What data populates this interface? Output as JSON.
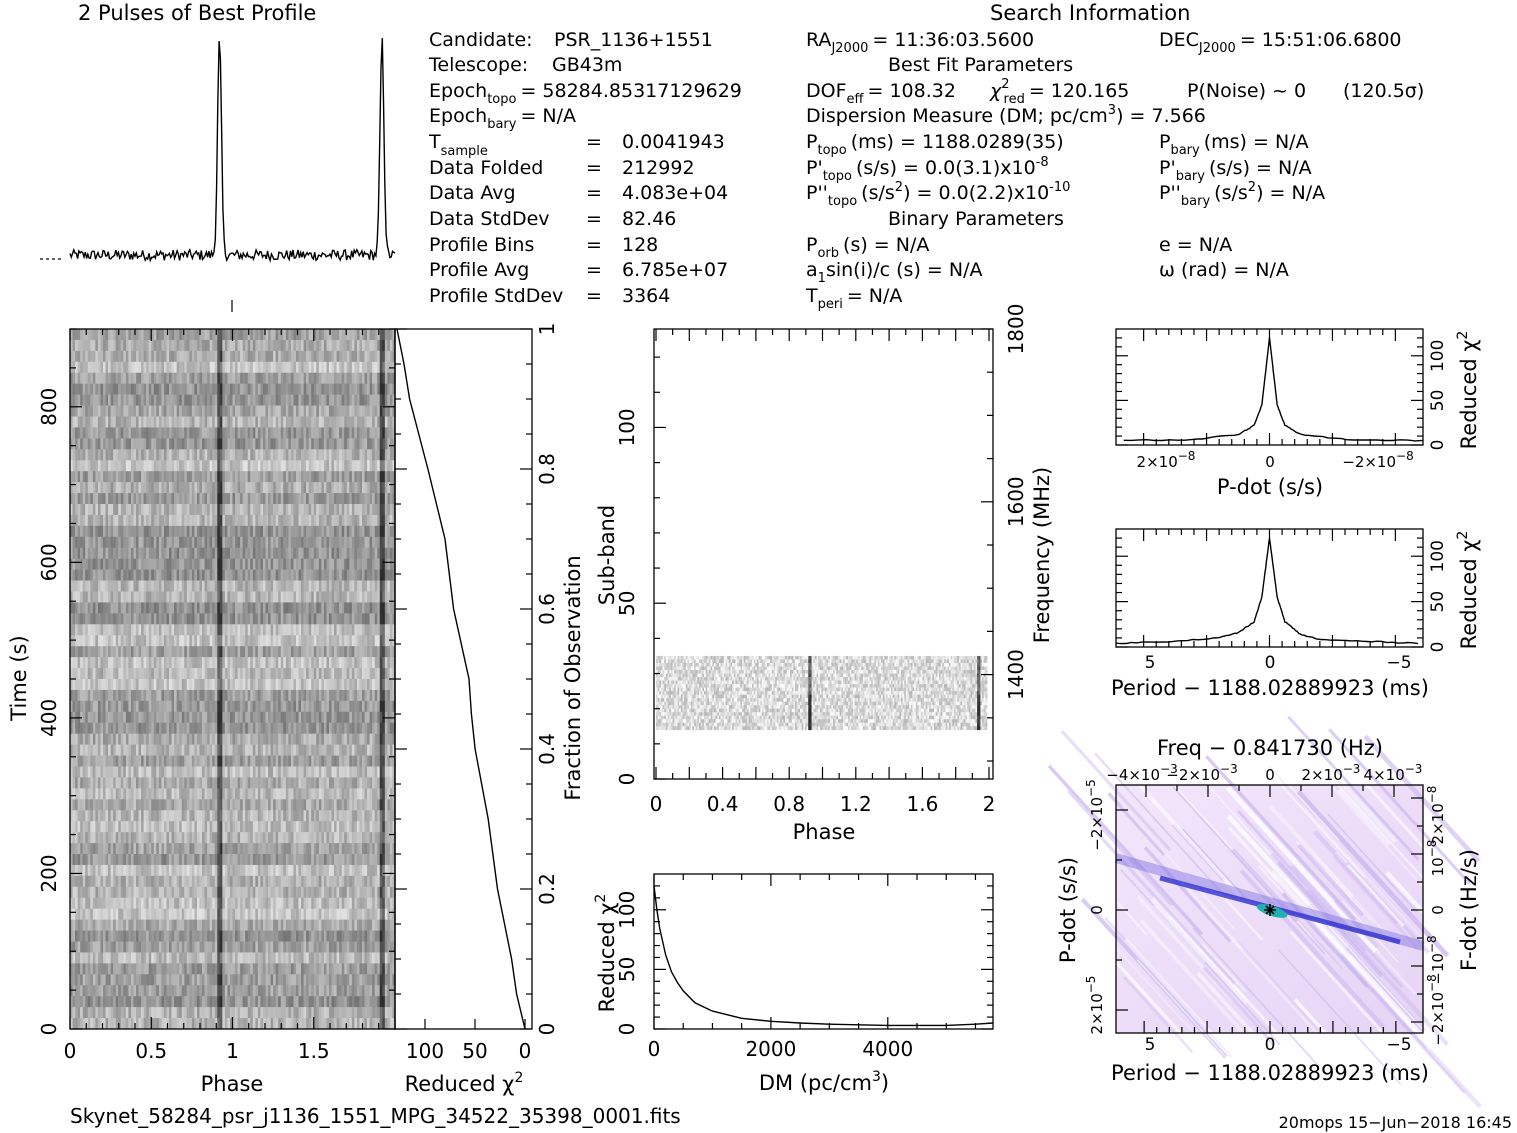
{
  "header": {
    "profile_title": "2 Pulses of Best Profile",
    "search_title": "Search Information",
    "best_fit_title": "Best Fit Parameters",
    "binary_title": "Binary Parameters"
  },
  "candidate_info": [
    {
      "label": "Candidate:",
      "value": "PSR_1136+1551"
    },
    {
      "label": "Telescope:",
      "value": "GB43m"
    },
    {
      "label": "Epoch",
      "sub": "topo",
      "value": "= 58284.85317129629"
    },
    {
      "label": "Epoch",
      "sub": "bary",
      "value": "= N/A"
    },
    {
      "label": "T",
      "sub": "sample",
      "value": "0.0041943"
    },
    {
      "label": "Data Folded",
      "value": "212992"
    },
    {
      "label": "Data Avg",
      "value": "4.083e+04"
    },
    {
      "label": "Data StdDev",
      "value": "82.46"
    },
    {
      "label": "Profile Bins",
      "value": "128"
    },
    {
      "label": "Profile Avg",
      "value": "6.785e+07"
    },
    {
      "label": "Profile StdDev",
      "value": "3364"
    }
  ],
  "search_info": {
    "ra": {
      "label": "RA",
      "sub": "J2000",
      "value": "= 11:36:03.5600"
    },
    "dec": {
      "label": "DEC",
      "sub": "J2000",
      "value": "= 15:51:06.6800"
    },
    "dof": {
      "label": "DOF",
      "sub": "eff",
      "value": "= 108.32"
    },
    "chi2": {
      "label": "χ",
      "sup": "2",
      "sub": "red",
      "value": "= 120.165"
    },
    "pnoise": "P(Noise) ~ 0",
    "sigma": "(120.5σ)",
    "dm": {
      "label": "Dispersion Measure (DM; pc/cm",
      "sup": "3",
      "value": ") = 7.566"
    },
    "p_topo": {
      "label": "P",
      "sub": "topo",
      "value": "(ms) =  1188.0289(35)"
    },
    "p_bary": {
      "label": "P",
      "sub": "bary",
      "value": "(ms) = N/A"
    },
    "pd_topo": {
      "label": "P'",
      "sub": "topo",
      "value": "(s/s) = 0.0(3.1)x10",
      "sup": "-8"
    },
    "pd_bary": {
      "label": "P'",
      "sub": "bary",
      "value": "(s/s) = N/A"
    },
    "pdd_topo": {
      "label": "P''",
      "sub": "topo",
      "value": "(s/s",
      "sup1": "2",
      "value2": ") = 0.0(2.2)x10",
      "sup": "-10"
    },
    "pdd_bary": {
      "label": "P''",
      "sub": "bary",
      "value": "(s/s",
      "sup1": "2",
      "value2": ") = N/A"
    },
    "porb": {
      "label": "P",
      "sub": "orb",
      "value": "(s) = N/A"
    },
    "ecc": "e = N/A",
    "a1": {
      "label": "a",
      "sub": "1",
      "value": "sin(i)/c (s) = N/A"
    },
    "omega": "ω (rad) = N/A",
    "tperi": {
      "label": "T",
      "sub": "peri",
      "value": "= N/A"
    }
  },
  "chart_data": [
    {
      "name": "profile",
      "type": "line",
      "title": "2 Pulses of Best Profile",
      "x": "phase 0-2",
      "peak_phases": [
        0.92,
        1.92
      ],
      "baseline": 0.06,
      "peak": 1.0
    },
    {
      "name": "time-phase",
      "type": "heatmap",
      "xlabel": "Phase",
      "ylabel": "Time (s)",
      "xlim": [
        0,
        2
      ],
      "ylim": [
        0,
        900
      ],
      "xticks": [
        "0",
        "0.5",
        "1",
        "1.5"
      ],
      "yticks": [
        "0",
        "200",
        "400",
        "600",
        "800"
      ],
      "pulse_phases": [
        0.92,
        1.92
      ]
    },
    {
      "name": "reduced-chi2-time",
      "type": "line",
      "xlabel": "Reduced χ",
      "xlabel_sup": "2",
      "ylabel": "Fraction of Observation",
      "xticks": [
        "100",
        "50",
        "0"
      ],
      "yticks": [
        "0",
        "0.2",
        "0.4",
        "0.6",
        "0.8",
        "1"
      ],
      "fraction": [
        0,
        0.05,
        0.1,
        0.2,
        0.3,
        0.4,
        0.45,
        0.5,
        0.6,
        0.7,
        0.8,
        0.9,
        0.95,
        1.0
      ],
      "chi2": [
        0,
        8,
        14,
        26,
        38,
        48,
        54,
        58,
        70,
        82,
        98,
        115,
        122,
        128
      ]
    },
    {
      "name": "subband-phase",
      "type": "heatmap",
      "xlabel": "Phase",
      "ylabel": "Sub-band",
      "y2label": "Frequency (MHz)",
      "xlim": [
        0,
        2
      ],
      "ylim": [
        0,
        128
      ],
      "xticks": [
        "0",
        "0.4",
        "0.8",
        "1.2",
        "1.6",
        "2"
      ],
      "yticks": [
        "0",
        "50",
        "100"
      ],
      "y2ticks": [
        "1400",
        "1600",
        "1800"
      ],
      "band_range": [
        14,
        35
      ],
      "pulse_phases": [
        0.93,
        1.95
      ]
    },
    {
      "name": "dm-chi2",
      "type": "line",
      "xlabel": "DM (pc/cm",
      "xlabel_sup": "3",
      "ylabel": "Reduced χ",
      "ylabel_sup": "2",
      "xlim": [
        0,
        5800
      ],
      "ylim": [
        0,
        130
      ],
      "xticks": [
        "0",
        "2000",
        "4000"
      ],
      "yticks": [
        "0",
        "50",
        "100"
      ],
      "dm": [
        0,
        50,
        100,
        200,
        300,
        400,
        500,
        700,
        1000,
        1500,
        2000,
        2500,
        3000,
        4000,
        5000,
        5500,
        5800
      ],
      "chi2": [
        120,
        100,
        84,
        62,
        48,
        39,
        32,
        22,
        15,
        9,
        6.5,
        5,
        4,
        3,
        3,
        4,
        5
      ]
    },
    {
      "name": "pdot-chi2",
      "type": "line",
      "xlabel": "P-dot (s/s)",
      "ylabel": "Reduced χ",
      "ylabel_sup": "2",
      "xticks": [
        "2×10",
        "0",
        "−2×10"
      ],
      "xtick_sup": "−8",
      "yticks": [
        "0",
        "50",
        "100"
      ],
      "x": [
        -1,
        -0.5,
        -0.2,
        -0.1,
        -0.05,
        0,
        0.05,
        0.1,
        0.2,
        0.5,
        1
      ],
      "chi2": [
        5,
        6,
        12,
        22,
        45,
        120,
        45,
        22,
        12,
        6,
        5
      ]
    },
    {
      "name": "period-chi2",
      "type": "line",
      "xlabel": "Period − 1188.02889923 (ms)",
      "ylabel": "Reduced χ",
      "ylabel_sup": "2",
      "xticks": [
        "5",
        "0",
        "−5"
      ],
      "yticks": [
        "0",
        "50",
        "100"
      ],
      "x": [
        6,
        4,
        2,
        1.2,
        0.6,
        0.3,
        0,
        -0.3,
        -0.6,
        -1.2,
        -2,
        -4,
        -6
      ],
      "chi2": [
        4,
        6,
        10,
        16,
        28,
        55,
        120,
        55,
        28,
        14,
        8,
        6,
        4
      ]
    },
    {
      "name": "period-pdot",
      "type": "heatmap",
      "title": "Freq − 0.841730 (Hz)",
      "xlabel": "Period − 1188.02889923 (ms)",
      "ylabel": "P-dot (s/s)",
      "y2label": "F-dot (Hz/s)",
      "xticks": [
        "5",
        "0",
        "−5"
      ],
      "x2ticks": [
        "−4×10",
        "−2×10",
        "0",
        "2×10",
        "4×10"
      ],
      "x2tick_sup": "−3",
      "yticks": [
        "−2×10",
        "0",
        "2×10"
      ],
      "ytick_sup": "−5",
      "y2ticks": [
        "2×10",
        "10",
        "0",
        "−10",
        "−2×10"
      ],
      "y2tick_sup": "−8"
    }
  ],
  "footer": {
    "filename": "Skynet_58284_psr_j1136_1551_MPG_34522_35398_0001.fits",
    "stamp": "20mops 15−Jun−2018 16:45"
  }
}
